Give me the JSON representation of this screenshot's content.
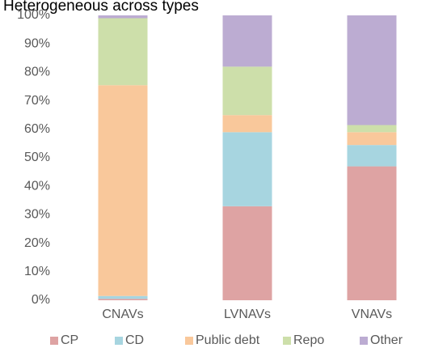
{
  "chart_data": {
    "type": "stacked_bar",
    "title": "Heterogeneous across types",
    "categories": [
      "CNAVs",
      "LVNAVs",
      "VNAVs"
    ],
    "series": [
      {
        "name": "CP",
        "color": "#dea3a3",
        "values": [
          0.5,
          33,
          47
        ]
      },
      {
        "name": "CD",
        "color": "#a7d5e0",
        "values": [
          1,
          26,
          7.5
        ]
      },
      {
        "name": "Public debt",
        "color": "#f9c89b",
        "values": [
          74,
          6,
          4.5
        ]
      },
      {
        "name": "Repo",
        "color": "#cddfaa",
        "values": [
          23.5,
          17,
          2.5
        ]
      },
      {
        "name": "Other",
        "color": "#bcacd2",
        "values": [
          1,
          18,
          38.5
        ]
      }
    ],
    "ylim": [
      0,
      100
    ],
    "yticks": [
      {
        "value": 0,
        "label": "0%"
      },
      {
        "value": 10,
        "label": "10%"
      },
      {
        "value": 20,
        "label": "20%"
      },
      {
        "value": 30,
        "label": "30%"
      },
      {
        "value": 40,
        "label": "40%"
      },
      {
        "value": 50,
        "label": "50%"
      },
      {
        "value": 60,
        "label": "60%"
      },
      {
        "value": 70,
        "label": "70%"
      },
      {
        "value": 80,
        "label": "80%"
      },
      {
        "value": 90,
        "label": "90%"
      },
      {
        "value": 100,
        "label": "100%"
      }
    ],
    "grid": false,
    "legend": "bottom"
  }
}
